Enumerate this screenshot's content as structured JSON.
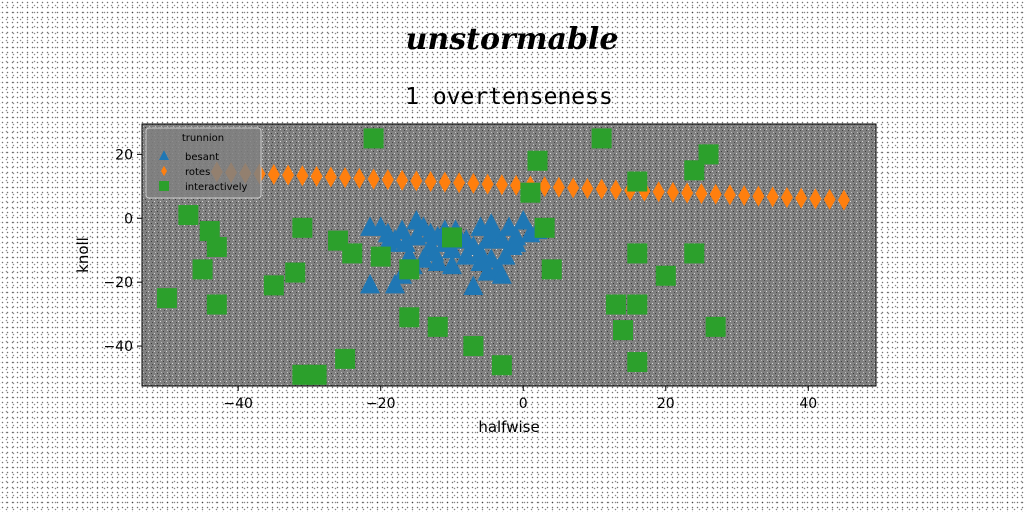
{
  "figure": {
    "suptitle": "unstormable"
  },
  "chart_data": {
    "type": "scatter",
    "title": "1 overtenseness",
    "xlabel": "halfwise",
    "ylabel": "knoll",
    "xlim": [
      -53.5,
      49.5
    ],
    "ylim": [
      -52.5,
      29.5
    ],
    "xticks": [
      -40,
      -20,
      0,
      20,
      40
    ],
    "yticks": [
      -40,
      -20,
      0,
      20
    ],
    "background_color": "#808080",
    "legend": {
      "title": "trunnion",
      "placement": "top-left"
    },
    "series": [
      {
        "name": "besant",
        "marker": "triangle",
        "color": "#1f77b4",
        "points": [
          [
            -21.5,
            -3
          ],
          [
            -20,
            -3
          ],
          [
            -19,
            -5
          ],
          [
            -18,
            -7
          ],
          [
            -16.5,
            -8
          ],
          [
            -15,
            -1
          ],
          [
            -14,
            -3
          ],
          [
            -13,
            -5
          ],
          [
            -12,
            -6
          ],
          [
            -11,
            -8
          ],
          [
            -10,
            -10
          ],
          [
            -9,
            -6
          ],
          [
            -7,
            -9
          ],
          [
            -6,
            -11
          ],
          [
            -5,
            -7
          ],
          [
            -4.5,
            -2
          ],
          [
            -4,
            -5
          ],
          [
            -3,
            -7
          ],
          [
            -2,
            -3
          ],
          [
            -1,
            -6
          ],
          [
            0,
            -1
          ],
          [
            -1.5,
            -9
          ],
          [
            -2.5,
            -12
          ],
          [
            -3.5,
            -16
          ],
          [
            -4.5,
            -13
          ],
          [
            -6,
            -14
          ],
          [
            -8,
            -12
          ],
          [
            -10,
            -15
          ],
          [
            -12,
            -14
          ],
          [
            -14,
            -13
          ],
          [
            -16,
            -12
          ],
          [
            -17,
            -18
          ],
          [
            -18,
            -21
          ],
          [
            -21.5,
            -21
          ],
          [
            -7,
            -21.5
          ],
          [
            -5,
            -17
          ],
          [
            -3,
            -18
          ],
          [
            -11,
            -4
          ],
          [
            -13,
            -9
          ],
          [
            -15,
            -6
          ],
          [
            1,
            -5
          ],
          [
            2,
            -4
          ],
          [
            -1,
            -8
          ],
          [
            -6,
            -3
          ],
          [
            -8,
            -7
          ],
          [
            -9.5,
            -4
          ],
          [
            -12.5,
            -11
          ],
          [
            -15.5,
            -15
          ],
          [
            -19,
            -8
          ],
          [
            -17,
            -4
          ]
        ]
      },
      {
        "name": "rotes",
        "marker": "thin_diamond",
        "color": "#ff7f0e",
        "points": [
          [
            -43,
            14.5
          ],
          [
            -41,
            14.3
          ],
          [
            -39,
            14.1
          ],
          [
            -37,
            13.9
          ],
          [
            -35,
            13.7
          ],
          [
            -33,
            13.5
          ],
          [
            -31,
            13.3
          ],
          [
            -29,
            13.1
          ],
          [
            -27,
            12.9
          ],
          [
            -25,
            12.7
          ],
          [
            -23,
            12.5
          ],
          [
            -21,
            12.3
          ],
          [
            -19,
            12.1
          ],
          [
            -17,
            11.9
          ],
          [
            -15,
            11.7
          ],
          [
            -13,
            11.5
          ],
          [
            -11,
            11.3
          ],
          [
            -9,
            11.1
          ],
          [
            -7,
            10.9
          ],
          [
            -5,
            10.7
          ],
          [
            -3,
            10.5
          ],
          [
            -1,
            10.3
          ],
          [
            1,
            10.1
          ],
          [
            3,
            9.9
          ],
          [
            5,
            9.7
          ],
          [
            7,
            9.5
          ],
          [
            9,
            9.3
          ],
          [
            11,
            9.1
          ],
          [
            13,
            8.9
          ],
          [
            15,
            8.7
          ],
          [
            17,
            8.5
          ],
          [
            19,
            8.3
          ],
          [
            21,
            8.1
          ],
          [
            23,
            7.9
          ],
          [
            25,
            7.7
          ],
          [
            27,
            7.5
          ],
          [
            29,
            7.3
          ],
          [
            31,
            7.1
          ],
          [
            33,
            6.9
          ],
          [
            35,
            6.7
          ],
          [
            37,
            6.5
          ],
          [
            39,
            6.3
          ],
          [
            41,
            6.1
          ],
          [
            43,
            5.9
          ],
          [
            45,
            5.7
          ]
        ]
      },
      {
        "name": "interactively",
        "marker": "square",
        "color": "#2ca02c",
        "points": [
          [
            -21,
            25
          ],
          [
            11,
            25
          ],
          [
            26,
            20
          ],
          [
            2,
            18
          ],
          [
            24,
            15
          ],
          [
            16,
            11.5
          ],
          [
            1,
            8
          ],
          [
            -47,
            1
          ],
          [
            -44,
            -4
          ],
          [
            -43,
            -9
          ],
          [
            -31,
            -3
          ],
          [
            -26,
            -7
          ],
          [
            -24,
            -11
          ],
          [
            -20,
            -12
          ],
          [
            -16,
            -16
          ],
          [
            -10,
            -6
          ],
          [
            3,
            -3
          ],
          [
            4,
            -16
          ],
          [
            16,
            -11
          ],
          [
            24,
            -11
          ],
          [
            20,
            -18
          ],
          [
            -45,
            -16
          ],
          [
            -32,
            -17
          ],
          [
            -35,
            -21
          ],
          [
            -50,
            -25
          ],
          [
            -43,
            -27
          ],
          [
            -16,
            -31
          ],
          [
            -12,
            -34
          ],
          [
            -7,
            -40
          ],
          [
            -3,
            -46
          ],
          [
            -25,
            -44
          ],
          [
            -31,
            -49
          ],
          [
            -29,
            -49
          ],
          [
            13,
            -27
          ],
          [
            16,
            -27
          ],
          [
            14,
            -35
          ],
          [
            16,
            -45
          ],
          [
            27,
            -34
          ]
        ]
      }
    ]
  }
}
